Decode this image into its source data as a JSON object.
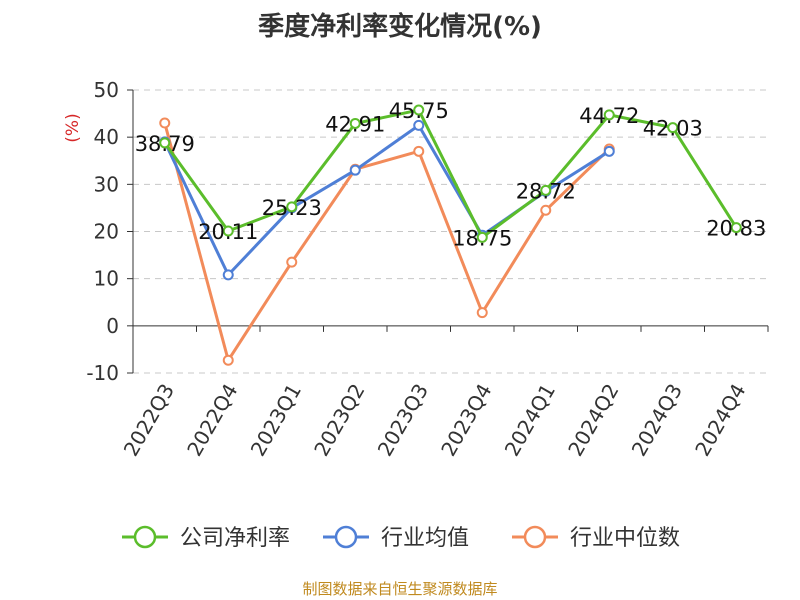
{
  "title": "季度净利率变化情况(%)",
  "source": "制图数据来自恒生聚源数据库",
  "chart_data": {
    "type": "line",
    "ylabel": "(%)",
    "categories": [
      "2022Q3",
      "2022Q4",
      "2023Q1",
      "2023Q2",
      "2023Q3",
      "2023Q4",
      "2024Q1",
      "2024Q2",
      "2024Q3",
      "2024Q4"
    ],
    "ylim": [
      -10,
      50
    ],
    "yticks": [
      "50",
      "40",
      "30",
      "20",
      "10",
      "0",
      "-10"
    ],
    "grid": true,
    "legend_position": "bottom",
    "series": [
      {
        "name": "公司净利率",
        "color": "#5bbd2b",
        "values": [
          38.79,
          20.11,
          25.23,
          42.91,
          45.75,
          18.75,
          28.72,
          44.72,
          42.03,
          20.83
        ],
        "labels": [
          "38.79",
          "20.11",
          "25.23",
          "42.91",
          "45.75",
          "18.75",
          "28.72",
          "44.72",
          "42.03",
          "20.83"
        ]
      },
      {
        "name": "行业均值",
        "color": "#4f7fd6",
        "values": [
          39.0,
          10.8,
          25.0,
          33.0,
          42.5,
          19.2,
          28.5,
          37.0,
          null,
          null
        ]
      },
      {
        "name": "行业中位数",
        "color": "#f28b5a",
        "values": [
          43.0,
          -7.3,
          13.5,
          33.2,
          37.0,
          2.8,
          24.5,
          37.5,
          null,
          null
        ]
      }
    ]
  }
}
